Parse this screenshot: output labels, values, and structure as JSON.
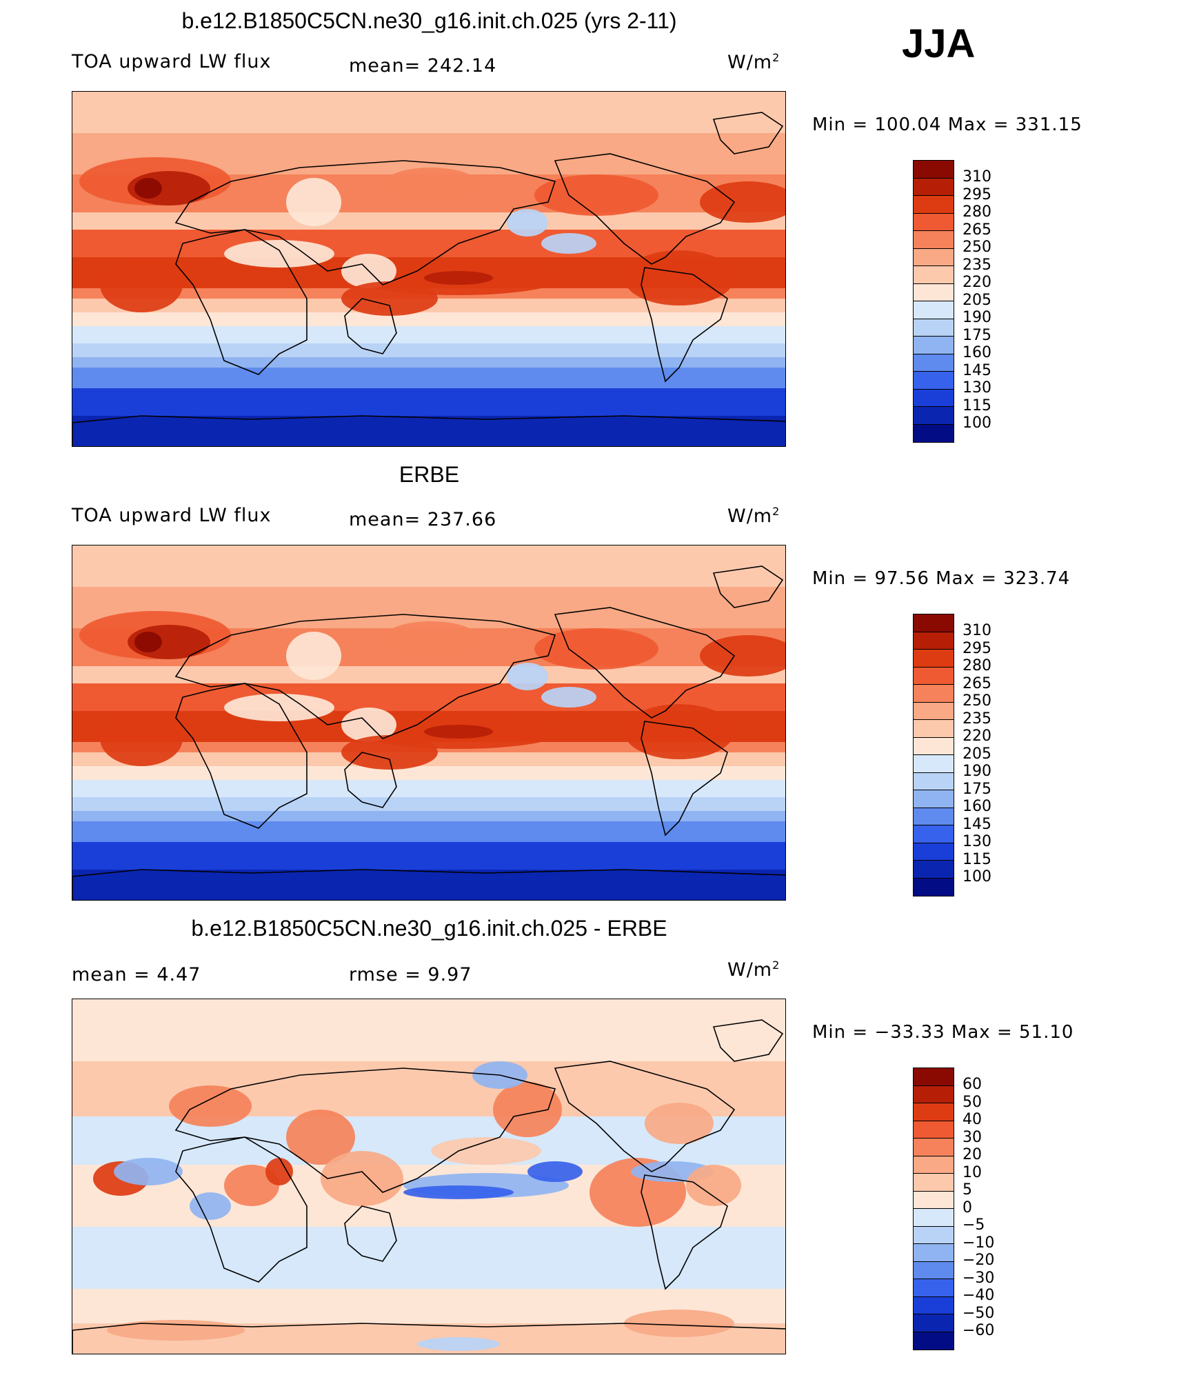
{
  "season": "JJA",
  "colors": {
    "warm": [
      "#fde6d6",
      "#fcc9ad",
      "#f9a985",
      "#f5825a",
      "#ef5a32",
      "#dd3c12",
      "#b61f06",
      "#8a0a02"
    ],
    "cool": [
      "#d6e8fa",
      "#b9d3f6",
      "#90b4f1",
      "#5f8bee",
      "#3762ec",
      "#1a3fd9",
      "#0a25b0",
      "#020d85"
    ],
    "land_outline": "#000000"
  },
  "panels": [
    {
      "title": "b.e12.B1850C5CN.ne30_g16.init.ch.025 (yrs 2-11)",
      "left_label": "TOA upward LW flux",
      "stat_label": "mean=  242.14",
      "units": "W/m",
      "units_sup": "2",
      "minmax": "Min  =  100.04  Max  =  331.15",
      "colorbar_labels": [
        "310",
        "295",
        "280",
        "265",
        "250",
        "235",
        "220",
        "205",
        "190",
        "175",
        "160",
        "145",
        "130",
        "115",
        "100"
      ]
    },
    {
      "title": "ERBE",
      "left_label": "TOA upward LW flux",
      "stat_label": "mean=  237.66",
      "units": "W/m",
      "units_sup": "2",
      "minmax": "Min  =    97.56  Max  =  323.74",
      "colorbar_labels": [
        "310",
        "295",
        "280",
        "265",
        "250",
        "235",
        "220",
        "205",
        "190",
        "175",
        "160",
        "145",
        "130",
        "115",
        "100"
      ]
    },
    {
      "title": "b.e12.B1850C5CN.ne30_g16.init.ch.025 - ERBE",
      "left_label": "mean  =      4.47",
      "stat_label": "rmse  =      9.97",
      "units": "W/m",
      "units_sup": "2",
      "minmax": "Min  =  −33.33  Max  =    51.10",
      "colorbar_labels": [
        "60",
        "50",
        "40",
        "30",
        "20",
        "10",
        "5",
        "0",
        "−5",
        "−10",
        "−20",
        "−30",
        "−40",
        "−50",
        "−60"
      ]
    }
  ]
}
